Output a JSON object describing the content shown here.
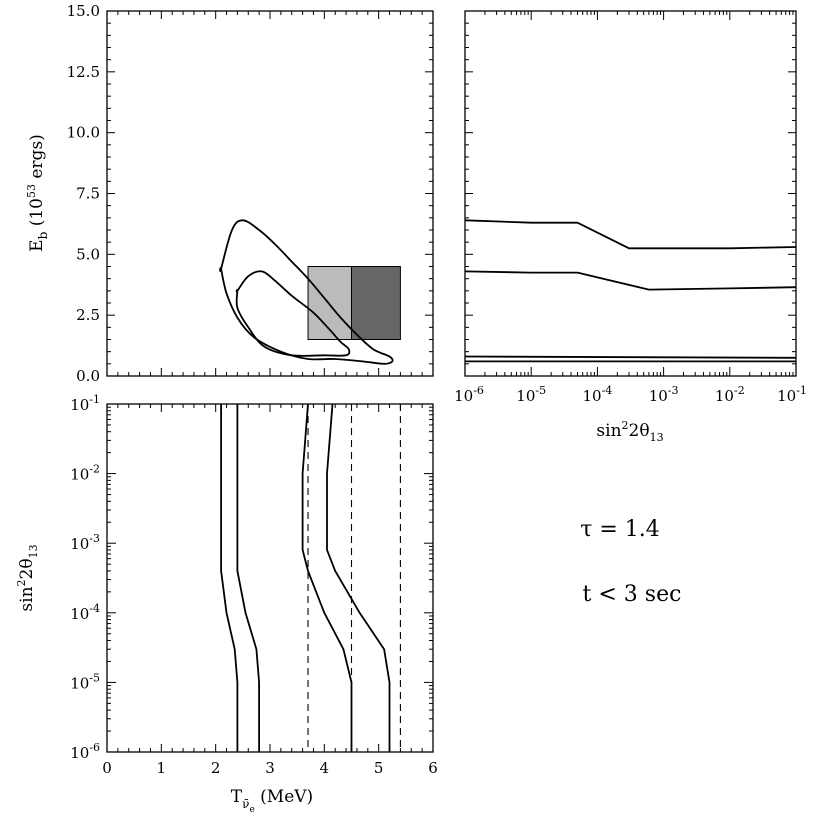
{
  "chart_data": [
    {
      "panel": "top-left",
      "type": "line",
      "xlim": [
        0,
        6
      ],
      "ylim": [
        0,
        15
      ],
      "xlabel": "",
      "ylabel": "E_b (10^53 ergs)",
      "y_ticks": [
        "0.0",
        "2.5",
        "5.0",
        "7.5",
        "10.0",
        "12.5",
        "15.0"
      ],
      "series": [
        {
          "kind": "contour-outer",
          "x": [
            2.1,
            2.3,
            2.5,
            2.8,
            3.1,
            3.4,
            3.7,
            4.0,
            4.3,
            4.6,
            4.9,
            5.2,
            5.25,
            5.1,
            4.7,
            4.2,
            3.7,
            3.2,
            2.7,
            2.4,
            2.2,
            2.1
          ],
          "y": [
            4.4,
            6.0,
            6.4,
            6.0,
            5.4,
            4.7,
            4.0,
            3.2,
            2.4,
            1.7,
            1.1,
            0.8,
            0.6,
            0.5,
            0.6,
            0.7,
            0.7,
            1.0,
            1.6,
            2.4,
            3.4,
            4.4
          ]
        },
        {
          "kind": "contour-inner",
          "x": [
            2.4,
            2.6,
            2.85,
            3.1,
            3.4,
            3.8,
            4.1,
            4.3,
            4.45,
            4.4,
            4.0,
            3.4,
            2.9,
            2.6,
            2.4,
            2.4
          ],
          "y": [
            3.5,
            4.1,
            4.3,
            3.9,
            3.3,
            2.6,
            1.9,
            1.4,
            1.1,
            0.85,
            0.85,
            0.85,
            1.2,
            2.0,
            2.8,
            3.5
          ]
        }
      ],
      "boxes": [
        {
          "x": [
            3.7,
            4.5
          ],
          "y": [
            1.5,
            4.5
          ],
          "shade": "#bbbbbb"
        },
        {
          "x": [
            4.5,
            5.4
          ],
          "y": [
            1.5,
            4.5
          ],
          "shade": "#666666"
        }
      ]
    },
    {
      "panel": "top-right",
      "type": "line",
      "xscale": "log",
      "xlim": [
        1e-06,
        0.1
      ],
      "ylim": [
        0,
        15
      ],
      "xlabel": "sin^2 2θ_13",
      "x_ticks": [
        "10^-6",
        "10^-5",
        "10^-4",
        "10^-3",
        "10^-2",
        "10^-1"
      ],
      "series": [
        {
          "x": [
            1e-06,
            1e-05,
            5e-05,
            0.0003,
            0.01,
            0.1
          ],
          "y": [
            6.4,
            6.3,
            6.3,
            5.25,
            5.25,
            5.3
          ]
        },
        {
          "x": [
            1e-06,
            1e-05,
            5e-05,
            0.0006,
            0.01,
            0.1
          ],
          "y": [
            4.3,
            4.25,
            4.25,
            3.55,
            3.6,
            3.65
          ]
        },
        {
          "x": [
            1e-06,
            0.1
          ],
          "y": [
            0.8,
            0.75
          ]
        },
        {
          "x": [
            1e-06,
            0.1
          ],
          "y": [
            0.6,
            0.6
          ]
        }
      ]
    },
    {
      "panel": "bottom-left",
      "type": "line",
      "xlim": [
        0,
        6
      ],
      "yscale": "log",
      "ylim": [
        1e-06,
        0.1
      ],
      "xlabel": "T_ν̄e (MeV)",
      "ylabel": "sin^2 2θ_13",
      "x_ticks": [
        "0",
        "1",
        "2",
        "3",
        "4",
        "5",
        "6"
      ],
      "y_ticks": [
        "10^-6",
        "10^-5",
        "10^-4",
        "10^-3",
        "10^-2",
        "10^-1"
      ],
      "series": [
        {
          "x": [
            2.1,
            2.1,
            2.1,
            2.2,
            2.35,
            2.4,
            2.4
          ],
          "y": [
            0.1,
            0.01,
            0.0004,
            0.0001,
            3e-05,
            1e-05,
            1e-06
          ]
        },
        {
          "x": [
            2.4,
            2.4,
            2.4,
            2.55,
            2.75,
            2.8,
            2.8
          ],
          "y": [
            0.1,
            0.01,
            0.0004,
            0.0001,
            3e-05,
            1e-05,
            1e-06
          ]
        },
        {
          "x": [
            3.7,
            3.6,
            3.6,
            3.7,
            4.0,
            4.35,
            4.5,
            4.5
          ],
          "y": [
            0.1,
            0.01,
            0.0008,
            0.0004,
            0.0001,
            3e-05,
            1e-05,
            1e-06
          ]
        },
        {
          "x": [
            4.15,
            4.05,
            4.05,
            4.2,
            4.65,
            5.1,
            5.2,
            5.2
          ],
          "y": [
            0.1,
            0.01,
            0.0008,
            0.0004,
            0.0001,
            3e-05,
            1e-05,
            1e-06
          ]
        }
      ],
      "reference_lines": [
        3.7,
        4.5,
        5.4
      ]
    }
  ],
  "annotations": {
    "tau": "τ  =  1.4",
    "time": "t  <  3  sec"
  }
}
